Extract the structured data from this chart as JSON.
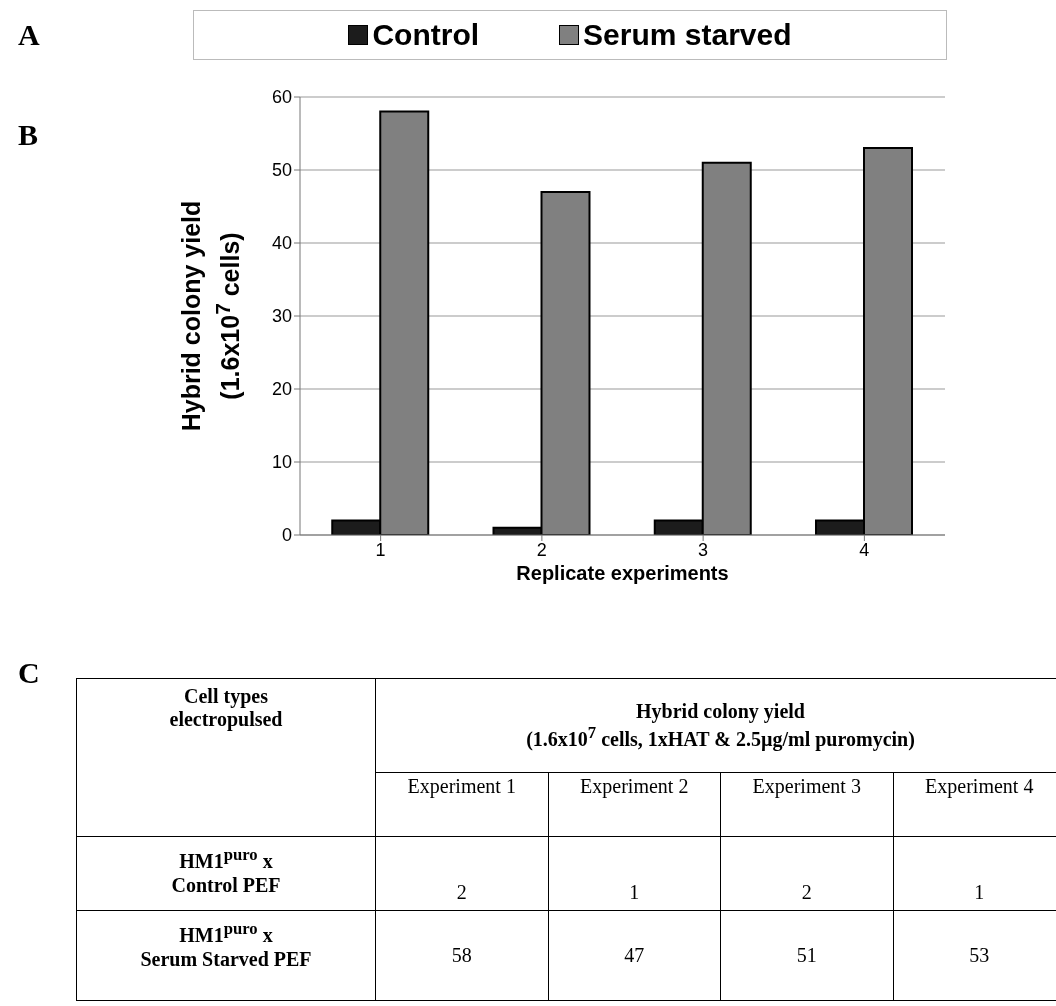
{
  "chart_data": [
    {
      "type": "bar",
      "categories": [
        "1",
        "2",
        "3",
        "4"
      ],
      "xlabel": "Replicate experiments",
      "ylabel": "Hybrid colony yield\n(1.6x10$^{7}$ cells)",
      "series": [
        {
          "name": "Control",
          "color": "#1c1c1c",
          "values": [
            2,
            1,
            2,
            2
          ]
        },
        {
          "name": "Serum starved",
          "color": "#808080",
          "values": [
            58,
            47,
            51,
            53
          ]
        }
      ],
      "ylim": [
        0,
        60
      ],
      "yticks": [
        0,
        10,
        20,
        30,
        40,
        50,
        60
      ],
      "grid": "y",
      "legend": "top",
      "annotations": [
        "A",
        "B"
      ]
    },
    {
      "type": "other",
      "annotations": [
        "C",
        "Cell types\nelectropulsed",
        "Hybrid colony yield\n(1.6x10$^{7}$ cells, 1xHAT & 2.5µg/ml puromycin)",
        "Experiment 1",
        "Experiment 2",
        "Experiment 3",
        "Experiment 4",
        "HM1$^{puro}$ x\nControl PEF",
        "2",
        "1",
        "2",
        "1",
        "HM1$^{puro}$ x\nSerum Starved PEF",
        "58",
        "47",
        "51",
        "53"
      ]
    }
  ]
}
